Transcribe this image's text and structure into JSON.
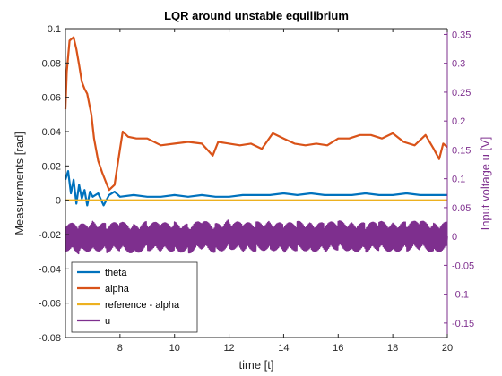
{
  "chart_data": {
    "type": "line",
    "title": "LQR around unstable equilibrium",
    "xlabel": "time [t]",
    "ylabel": "Measurements [rad]",
    "ylabel_right": "Input voltage u [V]",
    "xlim": [
      6,
      20
    ],
    "ylim": [
      -0.08,
      0.1
    ],
    "ylim_right": [
      -0.175,
      0.36
    ],
    "x_ticks": [
      "8",
      "10",
      "12",
      "14",
      "16",
      "18",
      "20"
    ],
    "y_ticks": [
      "0.1",
      "0.08",
      "0.06",
      "0.04",
      "0.02",
      "0",
      "-0.02",
      "-0.04",
      "-0.06",
      "-0.08"
    ],
    "y_ticks_right": [
      "0.35",
      "0.3",
      "0.25",
      "0.2",
      "0.15",
      "0.1",
      "0.05",
      "0",
      "-0.05",
      "-0.1",
      "-0.15"
    ],
    "grid": false,
    "legend_placement": "bottom-left",
    "series": [
      {
        "name": "theta",
        "axis": "left",
        "color": "#0072BD",
        "x": [
          6.0,
          6.1,
          6.2,
          6.3,
          6.4,
          6.5,
          6.6,
          6.7,
          6.8,
          6.9,
          7.0,
          7.2,
          7.4,
          7.6,
          7.8,
          8.0,
          8.5,
          9.0,
          9.5,
          10.0,
          10.5,
          11.0,
          11.5,
          12.0,
          12.5,
          13.0,
          13.5,
          14.0,
          14.5,
          15.0,
          15.5,
          16.0,
          16.5,
          17.0,
          17.5,
          18.0,
          18.5,
          19.0,
          19.5,
          20.0
        ],
        "y": [
          0.012,
          0.017,
          0.004,
          0.012,
          -0.002,
          0.009,
          0.001,
          0.006,
          -0.003,
          0.005,
          0.002,
          0.004,
          -0.003,
          0.003,
          0.005,
          0.002,
          0.003,
          0.002,
          0.002,
          0.003,
          0.002,
          0.003,
          0.002,
          0.002,
          0.003,
          0.003,
          0.003,
          0.004,
          0.003,
          0.004,
          0.003,
          0.003,
          0.003,
          0.004,
          0.003,
          0.003,
          0.004,
          0.003,
          0.003,
          0.003
        ]
      },
      {
        "name": "alpha",
        "axis": "left",
        "color": "#D95319",
        "x": [
          6.0,
          6.05,
          6.15,
          6.3,
          6.4,
          6.5,
          6.6,
          6.7,
          6.8,
          6.95,
          7.05,
          7.2,
          7.35,
          7.5,
          7.6,
          7.8,
          8.0,
          8.1,
          8.3,
          8.6,
          9.0,
          9.5,
          10.0,
          10.5,
          11.0,
          11.4,
          11.6,
          12.0,
          12.4,
          12.8,
          13.2,
          13.6,
          14.0,
          14.4,
          14.8,
          15.2,
          15.6,
          16.0,
          16.4,
          16.8,
          17.2,
          17.6,
          18.0,
          18.4,
          18.8,
          19.2,
          19.5,
          19.7,
          19.85,
          20.0
        ],
        "y": [
          0.053,
          0.075,
          0.093,
          0.095,
          0.088,
          0.079,
          0.069,
          0.065,
          0.062,
          0.05,
          0.036,
          0.023,
          0.016,
          0.01,
          0.006,
          0.009,
          0.03,
          0.04,
          0.037,
          0.036,
          0.036,
          0.032,
          0.033,
          0.034,
          0.033,
          0.026,
          0.034,
          0.033,
          0.032,
          0.033,
          0.03,
          0.039,
          0.036,
          0.033,
          0.032,
          0.033,
          0.032,
          0.036,
          0.036,
          0.038,
          0.038,
          0.036,
          0.039,
          0.034,
          0.032,
          0.038,
          0.03,
          0.024,
          0.033,
          0.031
        ]
      },
      {
        "name": "reference - alpha",
        "axis": "left",
        "color": "#EDB120",
        "x": [
          6,
          20
        ],
        "y": [
          0,
          0
        ]
      },
      {
        "name": "u",
        "axis": "right",
        "color": "#7E2F8E",
        "x": [
          6.0,
          6.5,
          7.0,
          7.5,
          8.0,
          8.5,
          9.0,
          9.5,
          10.0,
          10.5,
          11.0,
          11.5,
          12.0,
          12.5,
          13.0,
          13.5,
          14.0,
          14.5,
          15.0,
          15.5,
          16.0,
          16.5,
          17.0,
          17.5,
          18.0,
          18.5,
          19.0,
          19.5,
          20.0
        ],
        "y": [
          0.0,
          -0.005,
          0.002,
          -0.003,
          0.0,
          -0.004,
          0.001,
          -0.002,
          0.0,
          -0.004,
          0.002,
          -0.003,
          0.004,
          -0.002,
          0.0,
          0.002,
          -0.003,
          0.001,
          0.0,
          -0.002,
          0.002,
          0.0,
          -0.002,
          0.001,
          -0.001,
          0.0,
          0.002,
          -0.002,
          0.0
        ],
        "oscillation_amplitude": 0.025
      }
    ]
  }
}
